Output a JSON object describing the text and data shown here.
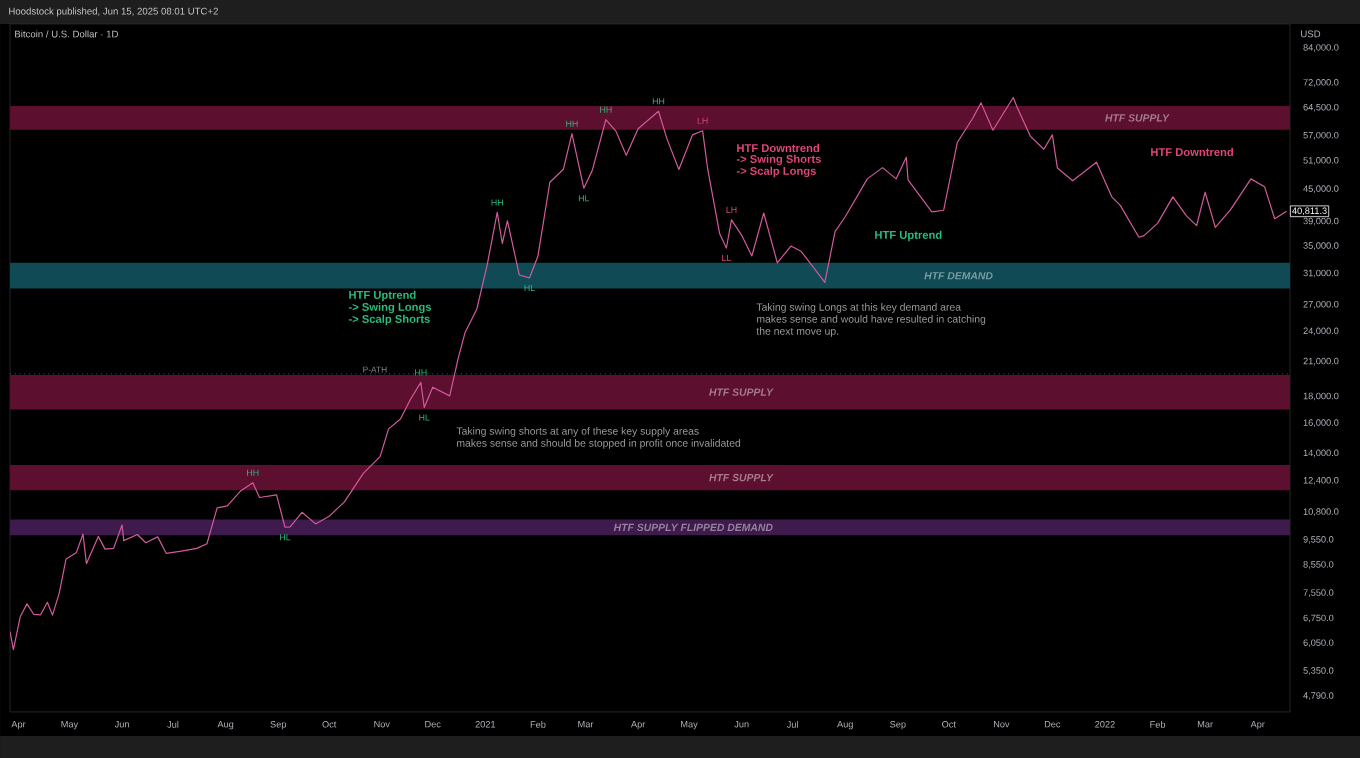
{
  "chart_data": {
    "type": "line",
    "title": "Bitcoin / U.S. Dollar · 1D",
    "subtitle": "Hoodstock published, Jun 15, 2025 08:01 UTC+2",
    "ylabel": "USD",
    "log": "y",
    "xlim": [
      "2020-03-27",
      "2022-04-20"
    ],
    "ylim": [
      4465,
      93400
    ],
    "xticks": [
      {
        "value": "2020-04-01",
        "label": "Apr"
      },
      {
        "value": "2020-05-01",
        "label": "May"
      },
      {
        "value": "2020-06-01",
        "label": "Jun"
      },
      {
        "value": "2020-07-01",
        "label": "Jul"
      },
      {
        "value": "2020-08-01",
        "label": "Aug"
      },
      {
        "value": "2020-09-01",
        "label": "Sep"
      },
      {
        "value": "2020-10-01",
        "label": "Oct"
      },
      {
        "value": "2020-11-01",
        "label": "Nov"
      },
      {
        "value": "2020-12-01",
        "label": "Dec"
      },
      {
        "value": "2021-01-01",
        "label": "2021"
      },
      {
        "value": "2021-02-01",
        "label": "Feb"
      },
      {
        "value": "2021-03-01",
        "label": "Mar"
      },
      {
        "value": "2021-04-01",
        "label": "Apr"
      },
      {
        "value": "2021-05-01",
        "label": "May"
      },
      {
        "value": "2021-06-01",
        "label": "Jun"
      },
      {
        "value": "2021-07-01",
        "label": "Jul"
      },
      {
        "value": "2021-08-01",
        "label": "Aug"
      },
      {
        "value": "2021-09-01",
        "label": "Sep"
      },
      {
        "value": "2021-10-01",
        "label": "Oct"
      },
      {
        "value": "2021-11-01",
        "label": "Nov"
      },
      {
        "value": "2021-12-01",
        "label": "Dec"
      },
      {
        "value": "2022-01-01",
        "label": "2022"
      },
      {
        "value": "2022-02-01",
        "label": "Feb"
      },
      {
        "value": "2022-03-01",
        "label": "Mar"
      },
      {
        "value": "2022-04-01",
        "label": "Apr"
      }
    ],
    "yticks": [
      {
        "value": 4790,
        "label": "4,790.0"
      },
      {
        "value": 5350,
        "label": "5,350.0"
      },
      {
        "value": 6050,
        "label": "6,050.0"
      },
      {
        "value": 6750,
        "label": "6,750.0"
      },
      {
        "value": 7550,
        "label": "7,550.0"
      },
      {
        "value": 8550,
        "label": "8,550.0"
      },
      {
        "value": 9550,
        "label": "9,550.0"
      },
      {
        "value": 10800,
        "label": "10,800.0"
      },
      {
        "value": 12400,
        "label": "12,400.0"
      },
      {
        "value": 14000,
        "label": "14,000.0"
      },
      {
        "value": 16000,
        "label": "16,000.0"
      },
      {
        "value": 18000,
        "label": "18,000.0"
      },
      {
        "value": 21000,
        "label": "21,000.0"
      },
      {
        "value": 24000,
        "label": "24,000.0"
      },
      {
        "value": 27000,
        "label": "27,000.0"
      },
      {
        "value": 31000,
        "label": "31,000.0"
      },
      {
        "value": 35000,
        "label": "35,000.0"
      },
      {
        "value": 39000,
        "label": "39,000.0"
      },
      {
        "value": 45000,
        "label": "45,000.0"
      },
      {
        "value": 51000,
        "label": "51,000.0"
      },
      {
        "value": 57000,
        "label": "57,000.0"
      },
      {
        "value": 64500,
        "label": "64,500.0"
      },
      {
        "value": 72000,
        "label": "72,000.0"
      },
      {
        "value": 84000,
        "label": "84,000.0"
      }
    ],
    "series": [
      {
        "color": "#d25a9c",
        "x": [
          "2020-03-27",
          "2020-03-29",
          "2020-04-02",
          "2020-04-06",
          "2020-04-10",
          "2020-04-14",
          "2020-04-18",
          "2020-04-21",
          "2020-04-25",
          "2020-04-29",
          "2020-05-05",
          "2020-05-09",
          "2020-05-11",
          "2020-05-18",
          "2020-05-22",
          "2020-05-27",
          "2020-06-01",
          "2020-06-02",
          "2020-06-10",
          "2020-06-15",
          "2020-06-22",
          "2020-06-27",
          "2020-07-05",
          "2020-07-15",
          "2020-07-21",
          "2020-07-27",
          "2020-08-02",
          "2020-08-10",
          "2020-08-17",
          "2020-08-21",
          "2020-08-31",
          "2020-09-05",
          "2020-09-08",
          "2020-09-15",
          "2020-09-23",
          "2020-10-01",
          "2020-10-10",
          "2020-10-21",
          "2020-10-31",
          "2020-11-05",
          "2020-11-12",
          "2020-11-18",
          "2020-11-24",
          "2020-11-26",
          "2020-12-01",
          "2020-12-11",
          "2020-12-16",
          "2020-12-20",
          "2020-12-27",
          "2021-01-02",
          "2021-01-08",
          "2021-01-11",
          "2021-01-14",
          "2021-01-21",
          "2021-01-27",
          "2021-02-01",
          "2021-02-08",
          "2021-02-16",
          "2021-02-21",
          "2021-02-28",
          "2021-03-05",
          "2021-03-13",
          "2021-03-19",
          "2021-03-25",
          "2021-04-01",
          "2021-04-13",
          "2021-04-18",
          "2021-04-25",
          "2021-05-03",
          "2021-05-09",
          "2021-05-12",
          "2021-05-19",
          "2021-05-23",
          "2021-05-26",
          "2021-06-01",
          "2021-06-07",
          "2021-06-14",
          "2021-06-22",
          "2021-06-30",
          "2021-07-06",
          "2021-07-20",
          "2021-07-26",
          "2021-08-01",
          "2021-08-14",
          "2021-08-23",
          "2021-08-31",
          "2021-09-06",
          "2021-09-07",
          "2021-09-21",
          "2021-09-28",
          "2021-10-06",
          "2021-10-15",
          "2021-10-20",
          "2021-10-27",
          "2021-11-08",
          "2021-11-10",
          "2021-11-18",
          "2021-11-26",
          "2021-12-01",
          "2021-12-04",
          "2021-12-13",
          "2021-12-27",
          "2022-01-05",
          "2022-01-10",
          "2022-01-21",
          "2022-01-24",
          "2022-02-01",
          "2022-02-10",
          "2022-02-18",
          "2022-02-24",
          "2022-03-01",
          "2022-03-07",
          "2022-03-16",
          "2022-03-28",
          "2022-04-05",
          "2022-04-11",
          "2022-04-18"
        ],
        "values": [
          6370,
          5880,
          6800,
          7200,
          6870,
          6860,
          7250,
          6850,
          7550,
          8780,
          9020,
          9800,
          8600,
          9700,
          9170,
          9200,
          10200,
          9520,
          9780,
          9430,
          9680,
          9000,
          9080,
          9200,
          9390,
          11000,
          11100,
          11870,
          12300,
          11520,
          11650,
          10100,
          10120,
          10790,
          10250,
          10600,
          11300,
          12800,
          13800,
          15600,
          16300,
          17800,
          19160,
          17150,
          18760,
          18050,
          21300,
          23850,
          26500,
          32100,
          40600,
          35400,
          39150,
          30800,
          30400,
          33500,
          46400,
          49150,
          57500,
          45200,
          48900,
          61200,
          58100,
          52300,
          58800,
          63500,
          56200,
          49100,
          57200,
          58250,
          49150,
          37000,
          34700,
          39300,
          36700,
          33500,
          40500,
          32500,
          35000,
          34200,
          29800,
          37300,
          39850,
          47100,
          49500,
          47100,
          51800,
          46900,
          40700,
          41000,
          55300,
          61500,
          65900,
          58400,
          67500,
          64900,
          56900,
          53700,
          57200,
          49400,
          46700,
          50700,
          43500,
          41900,
          36400,
          36650,
          38700,
          43500,
          40000,
          38300,
          44400,
          38000,
          41100,
          47100,
          45500,
          39500,
          40811.3
        ],
        "value_labels": [
          null,
          null,
          null,
          null,
          null,
          null,
          null,
          null,
          null,
          null,
          null,
          null,
          null,
          null,
          null,
          null,
          null,
          null,
          null,
          null,
          null,
          null,
          null,
          null,
          null,
          null,
          null,
          null,
          null,
          null,
          null,
          null,
          null,
          null,
          null,
          null,
          null,
          null,
          null,
          null,
          null,
          null,
          null,
          null,
          null,
          null,
          null,
          null,
          null,
          null,
          null,
          null,
          null,
          null,
          null,
          null,
          null,
          null,
          null,
          null,
          null,
          null,
          null,
          null,
          null,
          null,
          null,
          null,
          null,
          null,
          null,
          null,
          null,
          null,
          null,
          null,
          null,
          null,
          null,
          null,
          null,
          null,
          null,
          null,
          null,
          null,
          null,
          null,
          null,
          null,
          null,
          null,
          null,
          null,
          null,
          null,
          null,
          null,
          null,
          null,
          null,
          null,
          null,
          null,
          null,
          null,
          null,
          null,
          null,
          null,
          null,
          null,
          null,
          null,
          null,
          null,
          "40,811.3"
        ]
      }
    ],
    "bands": [
      {
        "axis": "y",
        "from": 58500,
        "to": 65000,
        "label": "HTF SUPPLY",
        "color": "#5c0f2e"
      },
      {
        "axis": "y",
        "from": 29000,
        "to": 32500,
        "label": "HTF DEMAND",
        "color": "#0f4a55"
      },
      {
        "axis": "y",
        "from": 17000,
        "to": 19800,
        "label": "HTF SUPPLY",
        "color": "#5c0f2e"
      },
      {
        "axis": "y",
        "from": 11900,
        "to": 13300,
        "label": "HTF SUPPLY",
        "color": "#5c0f2e"
      },
      {
        "axis": "y",
        "from": 9750,
        "to": 10450,
        "label": "HTF SUPPLY FLIPPED DEMAND",
        "color": "#3e1b4c"
      }
    ],
    "ref_lines": [
      {
        "axis": "y",
        "value": 19900,
        "label": "P-ATH",
        "color": "#8a8a8a",
        "line_style": "dotted"
      }
    ],
    "annotations": [
      {
        "text": "HH",
        "x": "2020-08-17",
        "y": 12300
      },
      {
        "text": "HL",
        "x": "2020-09-05",
        "y": 10100
      },
      {
        "text": "HH",
        "x": "2020-11-24",
        "y": 19160
      },
      {
        "text": "HL",
        "x": "2020-11-26",
        "y": 17150
      },
      {
        "text": "HH",
        "x": "2021-01-08",
        "y": 40600
      },
      {
        "text": "HL",
        "x": "2021-01-27",
        "y": 30400
      },
      {
        "text": "HH",
        "x": "2021-02-21",
        "y": 57500
      },
      {
        "text": "HL",
        "x": "2021-02-28",
        "y": 45200
      },
      {
        "text": "HH",
        "x": "2021-03-13",
        "y": 61200
      },
      {
        "text": "HH",
        "x": "2021-04-13",
        "y": 63500
      },
      {
        "text": "LH",
        "x": "2021-05-09",
        "y": 58250
      },
      {
        "text": "LH",
        "x": "2021-05-26",
        "y": 39300
      },
      {
        "text": "LL",
        "x": "2021-05-23",
        "y": 34700
      },
      "HTF Uptrend",
      "-> Swing Longs",
      "-> Scalp Shorts",
      "HTF Downtrend",
      "-> Swing Shorts",
      "-> Scalp Longs",
      "HTF Uptrend",
      "HTF Downtrend",
      "Taking swing Longs at this key demand area",
      "makes sense and would have resulted in catching",
      "the next move up.",
      "Taking swing shorts at any of these key supply areas",
      "makes sense and should be stopped in profit once invalidated"
    ]
  }
}
